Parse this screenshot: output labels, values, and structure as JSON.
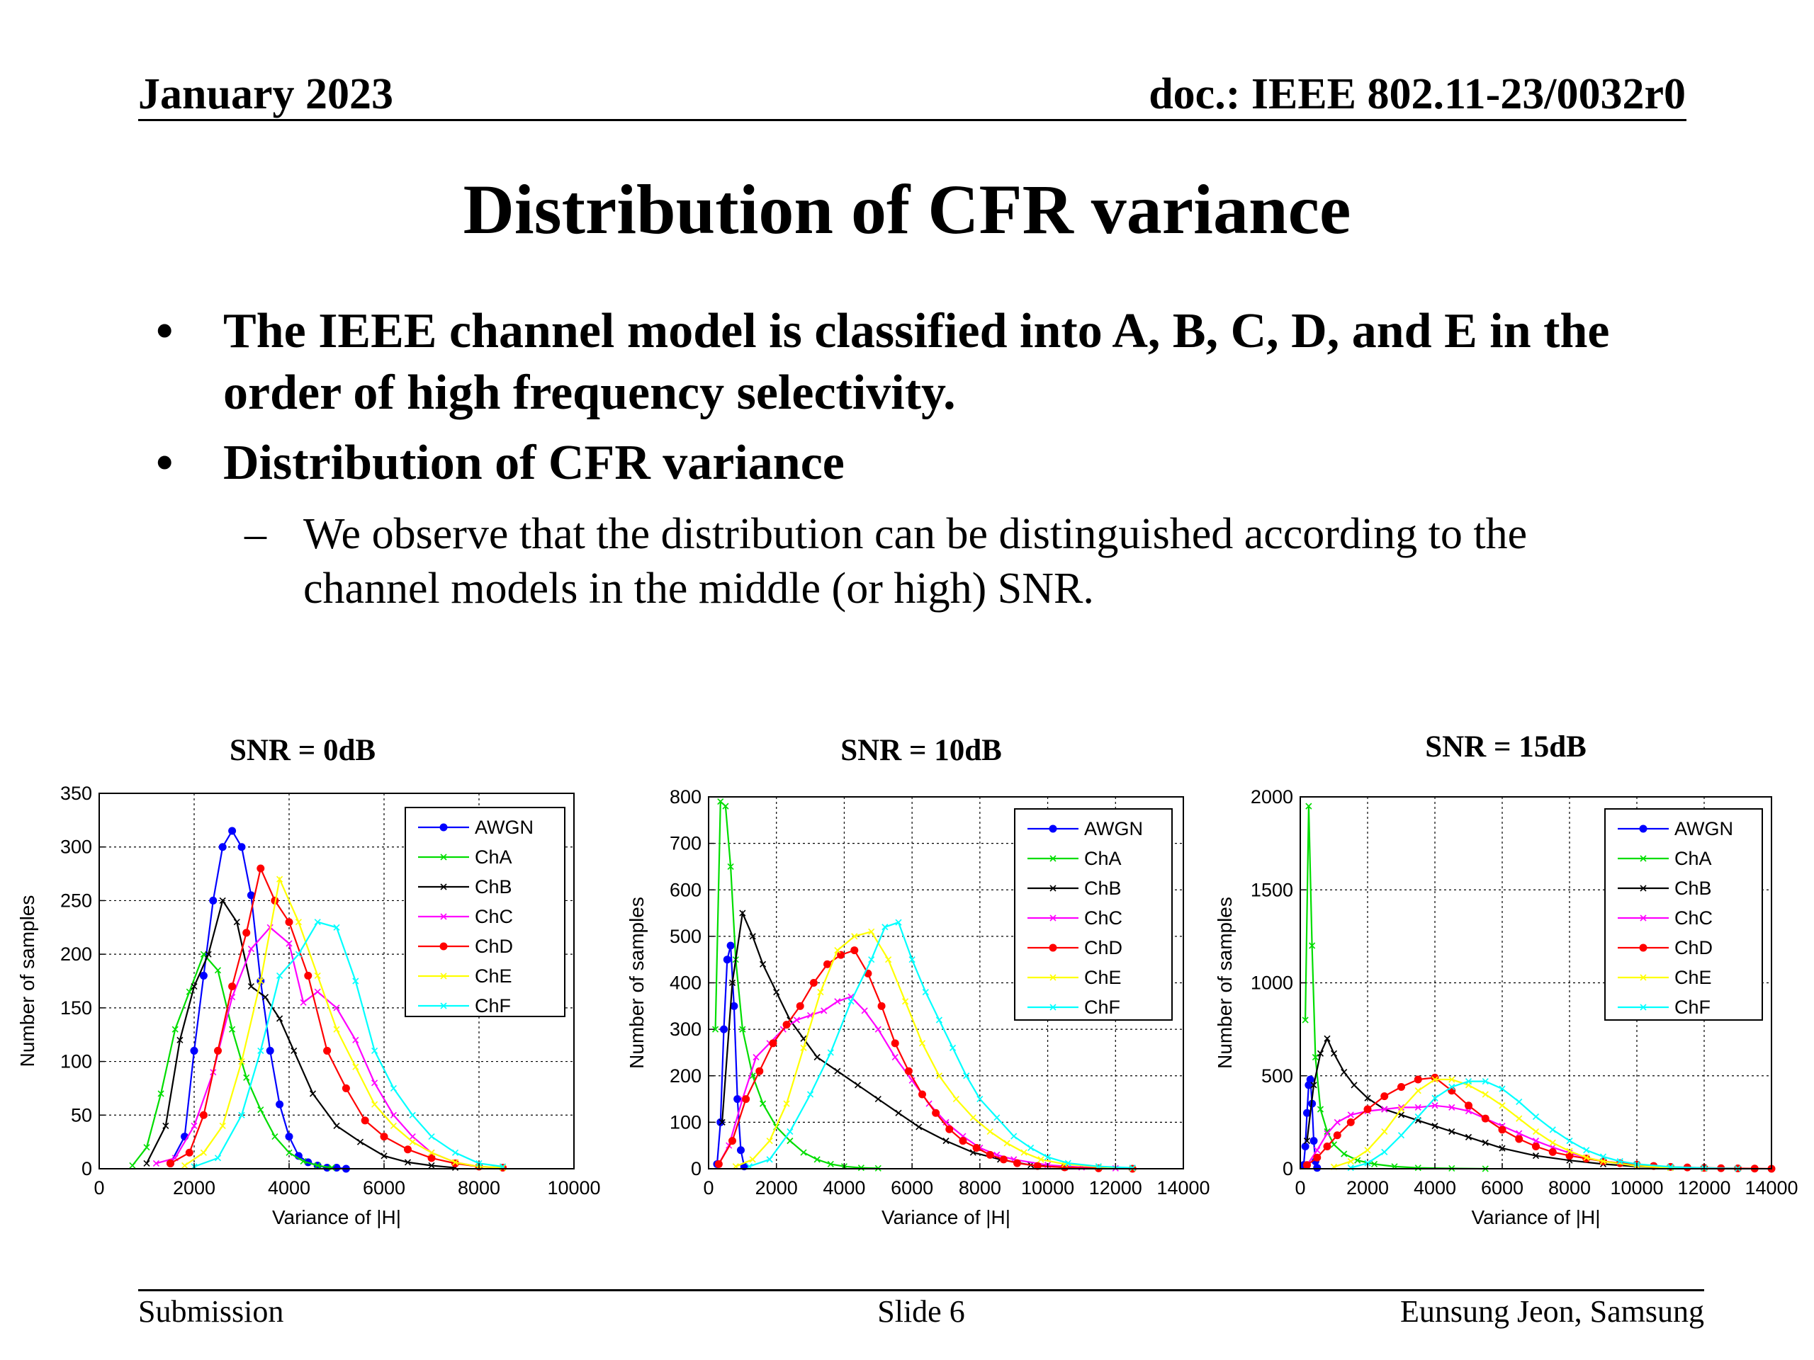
{
  "header": {
    "date": "January 2023",
    "doc": "doc.: IEEE 802.11-23/0032r0"
  },
  "title": "Distribution of CFR variance",
  "bullets": [
    {
      "line1": "The IEEE channel model is classified into A, B, C, D, and E in the",
      "line2": "order of high frequency selectivity."
    },
    {
      "line1": "Distribution of CFR variance"
    }
  ],
  "sub_bullet": {
    "dash": "–",
    "line1": "We observe that the distribution can be distinguished according to the",
    "line2": "channel models in the middle (or high) SNR."
  },
  "footer": {
    "left": "Submission",
    "center": "Slide 6",
    "right": "Eunsung Jeon, Samsung"
  },
  "chart_data": [
    {
      "type": "line",
      "title": "SNR = 0dB",
      "xlabel": "Variance of |H|",
      "ylabel": "Number of samples",
      "xlim": [
        0,
        10000
      ],
      "ylim": [
        0,
        350
      ],
      "xticks": [
        0,
        2000,
        4000,
        6000,
        8000,
        10000
      ],
      "yticks": [
        0,
        50,
        100,
        150,
        200,
        250,
        300,
        350
      ],
      "grid": true,
      "legend": "top-right",
      "series": [
        {
          "name": "AWGN",
          "color": "#0000ff",
          "marker": "dot",
          "x": [
            1500,
            1800,
            2000,
            2200,
            2400,
            2600,
            2800,
            3000,
            3200,
            3400,
            3600,
            3800,
            4000,
            4200,
            4400,
            4600,
            4800,
            5000,
            5200
          ],
          "y": [
            5,
            30,
            110,
            180,
            250,
            300,
            315,
            300,
            255,
            175,
            110,
            60,
            30,
            12,
            6,
            3,
            1,
            1,
            0
          ]
        },
        {
          "name": "ChA",
          "color": "#00dd00",
          "marker": "x",
          "x": [
            700,
            1000,
            1300,
            1600,
            1900,
            2200,
            2500,
            2800,
            3100,
            3400,
            3700,
            4000,
            4300,
            4600,
            4900
          ],
          "y": [
            3,
            20,
            70,
            130,
            165,
            200,
            185,
            130,
            85,
            55,
            30,
            15,
            7,
            3,
            1
          ]
        },
        {
          "name": "ChB",
          "color": "#000000",
          "marker": "x",
          "x": [
            1000,
            1400,
            1700,
            2000,
            2300,
            2600,
            2900,
            3200,
            3500,
            3800,
            4100,
            4500,
            5000,
            5500,
            6000,
            6500,
            7000,
            7500
          ],
          "y": [
            5,
            40,
            120,
            170,
            200,
            250,
            230,
            170,
            160,
            140,
            110,
            70,
            40,
            25,
            12,
            6,
            3,
            1
          ]
        },
        {
          "name": "ChC",
          "color": "#ff00ff",
          "marker": "x",
          "x": [
            1200,
            1600,
            2000,
            2400,
            2800,
            3200,
            3600,
            4000,
            4300,
            4600,
            5000,
            5400,
            5800,
            6200,
            6600,
            7000,
            7500,
            8000
          ],
          "y": [
            5,
            10,
            40,
            90,
            160,
            205,
            225,
            210,
            155,
            165,
            150,
            120,
            80,
            50,
            30,
            15,
            6,
            2
          ]
        },
        {
          "name": "ChD",
          "color": "#ff0000",
          "marker": "dot",
          "x": [
            1500,
            1900,
            2200,
            2500,
            2800,
            3100,
            3400,
            3700,
            4000,
            4400,
            4800,
            5200,
            5600,
            6000,
            6500,
            7000,
            7500,
            8000,
            8500
          ],
          "y": [
            5,
            15,
            50,
            110,
            170,
            220,
            280,
            250,
            230,
            180,
            110,
            75,
            45,
            30,
            18,
            10,
            5,
            2,
            1
          ]
        },
        {
          "name": "ChE",
          "color": "#ffff00",
          "marker": "x",
          "x": [
            1800,
            2200,
            2600,
            3000,
            3400,
            3800,
            4200,
            4600,
            5000,
            5400,
            5800,
            6200,
            6600,
            7000,
            7500,
            8000,
            8500
          ],
          "y": [
            3,
            15,
            40,
            100,
            175,
            270,
            230,
            180,
            130,
            95,
            60,
            40,
            25,
            15,
            6,
            2,
            1
          ]
        },
        {
          "name": "ChF",
          "color": "#00ffff",
          "marker": "x",
          "x": [
            2000,
            2500,
            3000,
            3400,
            3800,
            4200,
            4600,
            5000,
            5400,
            5800,
            6200,
            6600,
            7000,
            7500,
            8000,
            8500
          ],
          "y": [
            2,
            10,
            50,
            110,
            180,
            200,
            230,
            225,
            175,
            110,
            75,
            50,
            30,
            15,
            5,
            2
          ]
        }
      ]
    },
    {
      "type": "line",
      "title": "SNR = 10dB",
      "xlabel": "Variance of |H|",
      "ylabel": "Number of samples",
      "xlim": [
        0,
        14000
      ],
      "ylim": [
        0,
        800
      ],
      "xticks": [
        0,
        2000,
        4000,
        6000,
        8000,
        10000,
        12000,
        14000
      ],
      "yticks": [
        0,
        100,
        200,
        300,
        400,
        500,
        600,
        700,
        800
      ],
      "grid": true,
      "legend": "top-right",
      "series": [
        {
          "name": "AWGN",
          "color": "#0000ff",
          "marker": "dot",
          "x": [
            250,
            350,
            450,
            550,
            650,
            750,
            850,
            950,
            1050
          ],
          "y": [
            10,
            100,
            300,
            450,
            480,
            350,
            150,
            40,
            5
          ]
        },
        {
          "name": "ChA",
          "color": "#00dd00",
          "marker": "x",
          "x": [
            200,
            350,
            500,
            650,
            800,
            1000,
            1300,
            1600,
            2000,
            2400,
            2800,
            3200,
            3600,
            4000,
            4500,
            5000
          ],
          "y": [
            300,
            790,
            780,
            650,
            450,
            300,
            200,
            140,
            90,
            60,
            35,
            20,
            10,
            5,
            2,
            1
          ]
        },
        {
          "name": "ChB",
          "color": "#000000",
          "marker": "x",
          "x": [
            400,
            700,
            1000,
            1300,
            1600,
            2000,
            2400,
            2800,
            3200,
            3800,
            4400,
            5000,
            5600,
            6200,
            7000,
            7800,
            8600,
            9500,
            10500
          ],
          "y": [
            100,
            400,
            550,
            500,
            440,
            380,
            320,
            280,
            240,
            210,
            180,
            150,
            120,
            90,
            60,
            35,
            20,
            8,
            3
          ]
        },
        {
          "name": "ChC",
          "color": "#ff00ff",
          "marker": "x",
          "x": [
            300,
            600,
            1000,
            1400,
            1800,
            2200,
            2600,
            3000,
            3400,
            3800,
            4200,
            4600,
            5000,
            5500,
            6000,
            6500,
            7000,
            7500,
            8000,
            8500,
            9000,
            10000,
            11000,
            12000
          ],
          "y": [
            10,
            50,
            150,
            240,
            270,
            300,
            320,
            330,
            340,
            360,
            370,
            340,
            300,
            240,
            190,
            140,
            100,
            70,
            45,
            30,
            20,
            8,
            3,
            1
          ]
        },
        {
          "name": "ChD",
          "color": "#ff0000",
          "marker": "dot",
          "x": [
            300,
            700,
            1100,
            1500,
            1900,
            2300,
            2700,
            3100,
            3500,
            3900,
            4300,
            4700,
            5100,
            5500,
            5900,
            6300,
            6700,
            7100,
            7500,
            7900,
            8300,
            8700,
            9100,
            9700,
            10500,
            11500,
            12500
          ],
          "y": [
            10,
            60,
            150,
            210,
            270,
            310,
            350,
            400,
            440,
            460,
            470,
            420,
            350,
            270,
            210,
            160,
            120,
            85,
            60,
            45,
            30,
            20,
            12,
            6,
            3,
            1,
            0
          ]
        },
        {
          "name": "ChE",
          "color": "#ffff00",
          "marker": "x",
          "x": [
            800,
            1300,
            1800,
            2300,
            2800,
            3300,
            3800,
            4300,
            4800,
            5300,
            5800,
            6300,
            6800,
            7300,
            7800,
            8300,
            8800,
            9300,
            9800,
            10500,
            11500,
            12500
          ],
          "y": [
            5,
            20,
            60,
            140,
            260,
            380,
            470,
            500,
            510,
            450,
            360,
            270,
            200,
            150,
            110,
            80,
            55,
            35,
            20,
            10,
            4,
            1
          ]
        },
        {
          "name": "ChF",
          "color": "#00ffff",
          "marker": "x",
          "x": [
            1200,
            1800,
            2400,
            3000,
            3600,
            4200,
            4800,
            5200,
            5600,
            6000,
            6400,
            6800,
            7200,
            7600,
            8000,
            8500,
            9000,
            9500,
            10000,
            10600,
            11500,
            12500
          ],
          "y": [
            5,
            20,
            80,
            160,
            250,
            360,
            450,
            520,
            530,
            450,
            380,
            320,
            260,
            200,
            150,
            110,
            70,
            45,
            25,
            12,
            5,
            2
          ]
        }
      ]
    },
    {
      "type": "line",
      "title": "SNR = 15dB",
      "xlabel": "Variance of |H|",
      "ylabel": "Number of samples",
      "xlim": [
        0,
        14000
      ],
      "ylim": [
        0,
        2000
      ],
      "xticks": [
        0,
        2000,
        4000,
        6000,
        8000,
        10000,
        12000,
        14000
      ],
      "yticks": [
        0,
        500,
        1000,
        1500,
        2000
      ],
      "grid": true,
      "legend": "top-right",
      "series": [
        {
          "name": "AWGN",
          "color": "#0000ff",
          "marker": "dot",
          "x": [
            100,
            150,
            200,
            250,
            300,
            350,
            400,
            450,
            500
          ],
          "y": [
            20,
            120,
            300,
            450,
            480,
            350,
            150,
            40,
            5
          ]
        },
        {
          "name": "ChA",
          "color": "#00dd00",
          "marker": "x",
          "x": [
            150,
            250,
            350,
            450,
            600,
            800,
            1000,
            1300,
            1700,
            2200,
            2800,
            3500,
            4500,
            5500
          ],
          "y": [
            800,
            1950,
            1200,
            600,
            320,
            200,
            130,
            80,
            45,
            25,
            12,
            5,
            2,
            0
          ]
        },
        {
          "name": "ChB",
          "color": "#000000",
          "marker": "x",
          "x": [
            200,
            400,
            600,
            800,
            1000,
            1300,
            1600,
            2000,
            2500,
            3000,
            3500,
            4000,
            4500,
            5000,
            5500,
            6000,
            7000,
            8000,
            9000,
            10000,
            11000,
            12000
          ],
          "y": [
            150,
            450,
            620,
            700,
            620,
            520,
            450,
            380,
            320,
            290,
            260,
            230,
            200,
            170,
            140,
            110,
            70,
            45,
            25,
            12,
            5,
            1
          ]
        },
        {
          "name": "ChC",
          "color": "#ff00ff",
          "marker": "x",
          "x": [
            200,
            500,
            800,
            1100,
            1500,
            2000,
            2500,
            3000,
            3500,
            4000,
            4500,
            5000,
            5500,
            6000,
            6500,
            7000,
            7500,
            8000,
            8500,
            9000,
            10000,
            11000,
            12000
          ],
          "y": [
            20,
            100,
            190,
            250,
            290,
            310,
            320,
            330,
            330,
            340,
            330,
            310,
            270,
            230,
            190,
            150,
            115,
            85,
            60,
            40,
            18,
            7,
            2
          ]
        },
        {
          "name": "ChD",
          "color": "#ff0000",
          "marker": "dot",
          "x": [
            200,
            500,
            800,
            1100,
            1500,
            2000,
            2500,
            3000,
            3500,
            4000,
            4500,
            5000,
            5500,
            6000,
            6500,
            7000,
            7500,
            8000,
            8500,
            9000,
            9500,
            10000,
            10500,
            11000,
            11500,
            12000,
            12500,
            13000,
            13500,
            14000
          ],
          "y": [
            20,
            60,
            120,
            180,
            250,
            320,
            390,
            440,
            480,
            490,
            420,
            340,
            270,
            210,
            160,
            120,
            90,
            70,
            55,
            40,
            30,
            22,
            15,
            10,
            7,
            5,
            3,
            2,
            1,
            0
          ]
        },
        {
          "name": "ChE",
          "color": "#ffff00",
          "marker": "x",
          "x": [
            1000,
            1500,
            2000,
            2500,
            3000,
            3500,
            4000,
            4500,
            5000,
            5500,
            6000,
            6500,
            7000,
            7500,
            8000,
            8500,
            9000,
            10000,
            11000,
            12000,
            13000
          ],
          "y": [
            10,
            40,
            100,
            200,
            320,
            420,
            480,
            480,
            450,
            400,
            340,
            270,
            200,
            140,
            95,
            60,
            40,
            15,
            5,
            2,
            1
          ]
        },
        {
          "name": "ChF",
          "color": "#00ffff",
          "marker": "x",
          "x": [
            1500,
            2000,
            2500,
            3000,
            3500,
            4000,
            4500,
            5000,
            5500,
            6000,
            6500,
            7000,
            7500,
            8000,
            8500,
            9000,
            9500,
            10000,
            11000,
            12000,
            13000
          ],
          "y": [
            5,
            30,
            90,
            180,
            280,
            380,
            440,
            470,
            470,
            430,
            360,
            280,
            210,
            150,
            100,
            65,
            40,
            25,
            10,
            4,
            1
          ]
        }
      ]
    }
  ]
}
